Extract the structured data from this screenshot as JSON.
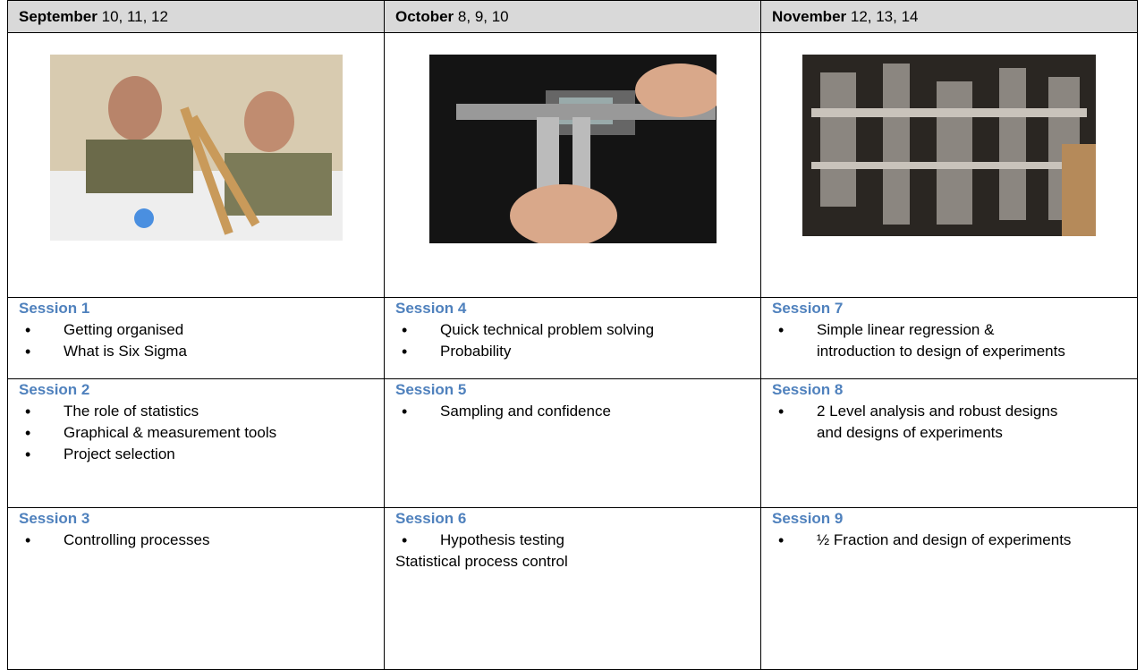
{
  "columns": [
    {
      "month": "September",
      "days": "10, 11, 12",
      "sessions": [
        {
          "title": "Session 1",
          "items": [
            "Getting organised",
            "What is Six Sigma"
          ]
        },
        {
          "title": "Session 2",
          "items": [
            "The role of statistics",
            "Graphical & measurement tools",
            "Project selection"
          ]
        },
        {
          "title": "Session 3",
          "items": [
            "Controlling processes"
          ]
        }
      ]
    },
    {
      "month": "October",
      "days": "8, 9, 10",
      "sessions": [
        {
          "title": "Session 4",
          "items": [
            "Quick technical problem solving",
            "Probability"
          ]
        },
        {
          "title": "Session 5",
          "items": [
            "Sampling and confidence"
          ]
        },
        {
          "title": "Session 6",
          "items": [
            "Hypothesis testing"
          ],
          "text": "Statistical process control"
        }
      ]
    },
    {
      "month": "November",
      "days": "12, 13, 14",
      "sessions": [
        {
          "title": "Session 7",
          "items": [
            "Simple linear regression & introduction to design of experiments"
          ]
        },
        {
          "title": "Session 8",
          "items": [
            "2 Level analysis and robust designs and designs of experiments"
          ]
        },
        {
          "title": "Session 9",
          "items": [
            "½ Fraction and design of experiments"
          ]
        }
      ]
    }
  ]
}
